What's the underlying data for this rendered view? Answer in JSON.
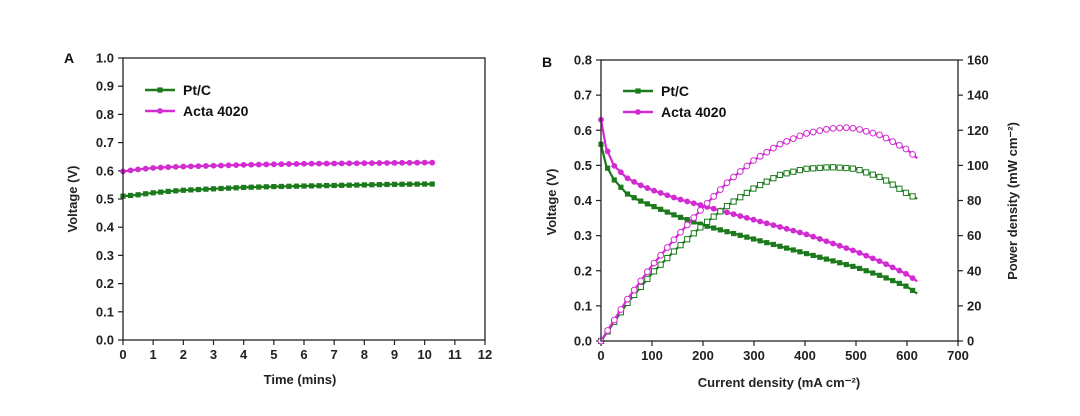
{
  "chart_data": [
    {
      "type": "line",
      "panel_label": "A",
      "title": "",
      "xlabel": "Time (mins)",
      "ylabel": "Voltage (V)",
      "xlim": [
        0,
        12
      ],
      "ylim": [
        0.0,
        1.0
      ],
      "xticks": [
        "0",
        "1",
        "2",
        "3",
        "4",
        "5",
        "6",
        "7",
        "8",
        "9",
        "10",
        "11",
        "12"
      ],
      "yticks": [
        "0.0",
        "0.1",
        "0.2",
        "0.3",
        "0.4",
        "0.5",
        "0.6",
        "0.7",
        "0.8",
        "0.9",
        "1.0"
      ],
      "legend_position": "top-left",
      "series": [
        {
          "name": "Pt/C",
          "color": "#1b7a1b",
          "marker": "filled-square",
          "x": [
            0,
            0.5,
            1,
            1.5,
            2,
            3,
            4,
            5,
            6,
            7,
            8,
            9,
            10,
            10.3
          ],
          "y": [
            0.51,
            0.515,
            0.522,
            0.527,
            0.531,
            0.536,
            0.541,
            0.544,
            0.546,
            0.548,
            0.55,
            0.552,
            0.553,
            0.553
          ]
        },
        {
          "name": "Acta 4020",
          "color": "#d12bd1",
          "marker": "filled-circle",
          "x": [
            0,
            0.5,
            1,
            1.5,
            2,
            3,
            4,
            5,
            6,
            7,
            8,
            9,
            10,
            10.3
          ],
          "y": [
            0.598,
            0.605,
            0.61,
            0.613,
            0.615,
            0.618,
            0.621,
            0.623,
            0.625,
            0.626,
            0.627,
            0.628,
            0.629,
            0.629
          ]
        }
      ]
    },
    {
      "type": "line",
      "panel_label": "B",
      "title": "",
      "xlabel": "Current density (mA cm⁻²)",
      "ylabel": "Voltage (V)",
      "y2label": "Power density (mW cm⁻²)",
      "xlim": [
        0,
        700
      ],
      "ylim": [
        0.0,
        0.8
      ],
      "y2lim": [
        0,
        160
      ],
      "xticks": [
        "0",
        "100",
        "200",
        "300",
        "400",
        "500",
        "600",
        "700"
      ],
      "yticks": [
        "0.0",
        "0.1",
        "0.2",
        "0.3",
        "0.4",
        "0.5",
        "0.6",
        "0.7",
        "0.8"
      ],
      "y2ticks": [
        "0",
        "20",
        "40",
        "60",
        "80",
        "100",
        "120",
        "140",
        "160"
      ],
      "legend_position": "top-left",
      "series": [
        {
          "name": "Pt/C",
          "axis": "left",
          "color": "#1b7a1b",
          "marker": "filled-square",
          "x": [
            0,
            10,
            25,
            50,
            75,
            100,
            150,
            200,
            250,
            300,
            350,
            400,
            450,
            500,
            550,
            600,
            620
          ],
          "y": [
            0.56,
            0.5,
            0.46,
            0.42,
            0.4,
            0.385,
            0.355,
            0.33,
            0.31,
            0.29,
            0.27,
            0.25,
            0.23,
            0.21,
            0.185,
            0.155,
            0.135
          ]
        },
        {
          "name": "Acta 4020",
          "axis": "left",
          "color": "#d12bd1",
          "marker": "filled-circle",
          "x": [
            0,
            10,
            25,
            50,
            75,
            100,
            150,
            200,
            250,
            300,
            350,
            400,
            450,
            500,
            550,
            600,
            620
          ],
          "y": [
            0.63,
            0.55,
            0.5,
            0.465,
            0.445,
            0.43,
            0.405,
            0.385,
            0.365,
            0.345,
            0.325,
            0.305,
            0.28,
            0.255,
            0.225,
            0.19,
            0.17
          ]
        },
        {
          "name": "",
          "axis": "right",
          "color": "#1b7a1b",
          "marker": "open-square",
          "x": [
            0,
            50,
            100,
            150,
            200,
            250,
            300,
            350,
            400,
            450,
            480,
            500,
            550,
            600,
            620
          ],
          "y": [
            0,
            21,
            38.5,
            53,
            66,
            77.5,
            87,
            94.5,
            98,
            99,
            98.5,
            98,
            93,
            84,
            81
          ]
        },
        {
          "name": "",
          "axis": "right",
          "color": "#d12bd1",
          "marker": "open-circle",
          "x": [
            0,
            50,
            100,
            150,
            200,
            250,
            300,
            350,
            400,
            450,
            480,
            500,
            550,
            600,
            620
          ],
          "y": [
            0,
            23,
            43,
            60,
            76,
            91,
            103,
            112,
            118,
            121,
            121.5,
            121,
            117,
            109,
            104
          ]
        }
      ]
    }
  ]
}
